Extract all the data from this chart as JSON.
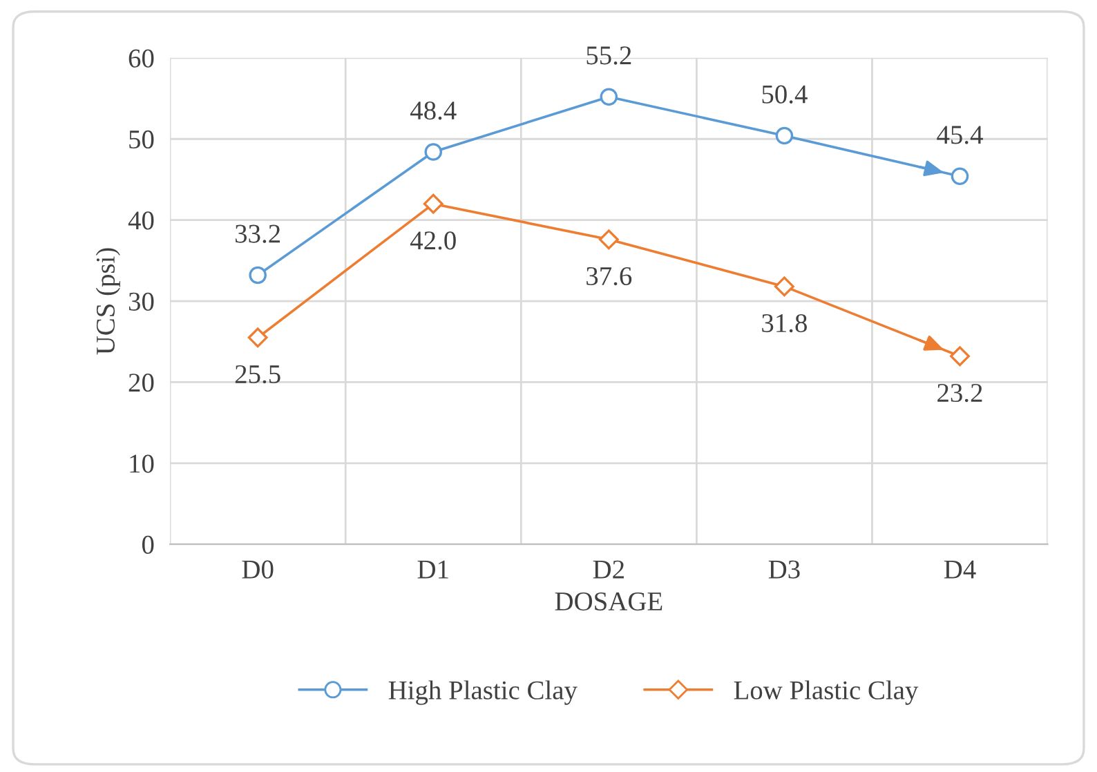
{
  "chart_data": {
    "type": "line",
    "xlabel": "DOSAGE",
    "ylabel": "UCS (psi)",
    "categories": [
      "D0",
      "D1",
      "D2",
      "D3",
      "D4"
    ],
    "series": [
      {
        "name": "High Plastic Clay",
        "color": "#5b9bd5",
        "marker": "circle",
        "values": [
          33.2,
          48.4,
          55.2,
          50.4,
          45.4
        ],
        "value_labels": [
          "33.2",
          "48.4",
          "55.2",
          "50.4",
          "45.4"
        ]
      },
      {
        "name": "Low Plastic Clay",
        "color": "#ed7d31",
        "marker": "diamond",
        "values": [
          25.5,
          42.0,
          37.6,
          31.8,
          23.2
        ],
        "value_labels": [
          "25.5",
          "42.0",
          "37.6",
          "31.8",
          "23.2"
        ]
      }
    ],
    "ylim": [
      0,
      60
    ],
    "yticks": [
      0,
      10,
      20,
      30,
      40,
      50,
      60
    ],
    "grid": true,
    "legend": "bottom"
  }
}
